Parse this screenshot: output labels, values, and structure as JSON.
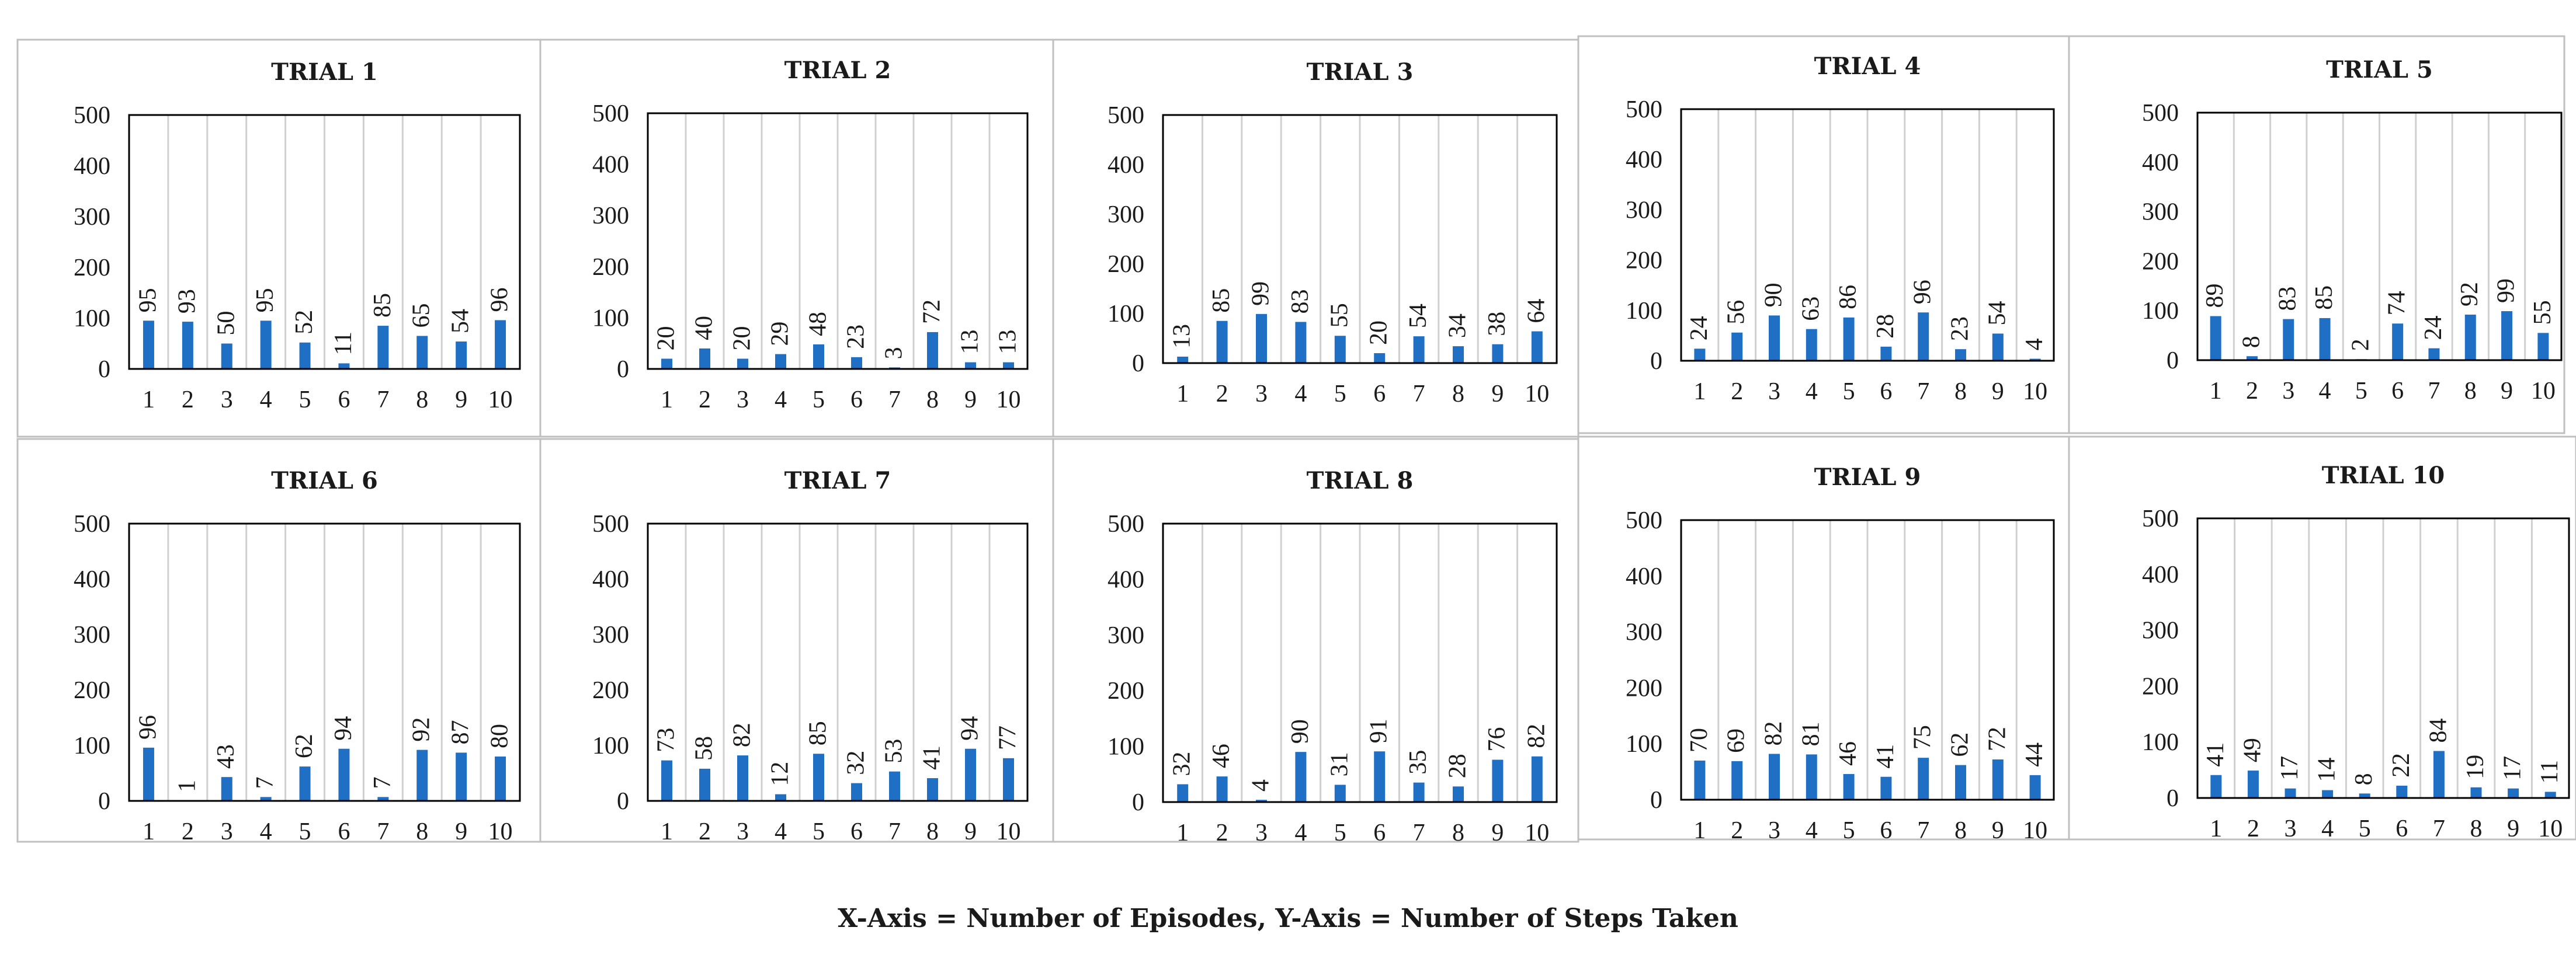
{
  "figure": {
    "caption": "X-Axis = Number of Episodes, Y-Axis = Number of Steps Taken",
    "bar_color": "#1f6fc5",
    "grid_color": "#d0d0d0",
    "frame_color": "#000000",
    "panel_border_color": "#bfbfbf"
  },
  "chart_data": [
    {
      "type": "bar",
      "title": "TRIAL 1",
      "categories": [
        "1",
        "2",
        "3",
        "4",
        "5",
        "6",
        "7",
        "8",
        "9",
        "10"
      ],
      "values": [
        95,
        93,
        50,
        95,
        52,
        11,
        85,
        65,
        54,
        96
      ],
      "ylim": [
        0,
        500
      ],
      "yticks": [
        "0",
        "100",
        "200",
        "300",
        "400",
        "500"
      ],
      "xlabel": "",
      "ylabel": "",
      "grid": true
    },
    {
      "type": "bar",
      "title": "TRIAL 2",
      "categories": [
        "1",
        "2",
        "3",
        "4",
        "5",
        "6",
        "7",
        "8",
        "9",
        "10"
      ],
      "values": [
        20,
        40,
        20,
        29,
        48,
        23,
        3,
        72,
        13,
        13
      ],
      "ylim": [
        0,
        500
      ],
      "yticks": [
        "0",
        "100",
        "200",
        "300",
        "400",
        "500"
      ],
      "xlabel": "",
      "ylabel": "",
      "grid": true
    },
    {
      "type": "bar",
      "title": "TRIAL 3",
      "categories": [
        "1",
        "2",
        "3",
        "4",
        "5",
        "6",
        "7",
        "8",
        "9",
        "10"
      ],
      "values": [
        13,
        85,
        99,
        83,
        55,
        20,
        54,
        34,
        38,
        64
      ],
      "ylim": [
        0,
        500
      ],
      "yticks": [
        "0",
        "100",
        "200",
        "300",
        "400",
        "500"
      ],
      "xlabel": "",
      "ylabel": "",
      "grid": true
    },
    {
      "type": "bar",
      "title": "TRIAL 4",
      "categories": [
        "1",
        "2",
        "3",
        "4",
        "5",
        "6",
        "7",
        "8",
        "9",
        "10"
      ],
      "values": [
        24,
        56,
        90,
        63,
        86,
        28,
        96,
        23,
        54,
        4
      ],
      "ylim": [
        0,
        500
      ],
      "yticks": [
        "0",
        "100",
        "200",
        "300",
        "400",
        "500"
      ],
      "xlabel": "",
      "ylabel": "",
      "grid": true
    },
    {
      "type": "bar",
      "title": "TRIAL 5",
      "categories": [
        "1",
        "2",
        "3",
        "4",
        "5",
        "6",
        "7",
        "8",
        "9",
        "10"
      ],
      "values": [
        89,
        8,
        83,
        85,
        2,
        74,
        24,
        92,
        99,
        55
      ],
      "ylim": [
        0,
        500
      ],
      "yticks": [
        "0",
        "100",
        "200",
        "300",
        "400",
        "500"
      ],
      "xlabel": "",
      "ylabel": "",
      "grid": true
    },
    {
      "type": "bar",
      "title": "TRIAL 6",
      "categories": [
        "1",
        "2",
        "3",
        "4",
        "5",
        "6",
        "7",
        "8",
        "9",
        "10"
      ],
      "values": [
        96,
        1,
        43,
        7,
        62,
        94,
        7,
        92,
        87,
        80
      ],
      "ylim": [
        0,
        500
      ],
      "yticks": [
        "0",
        "100",
        "200",
        "300",
        "400",
        "500"
      ],
      "xlabel": "",
      "ylabel": "",
      "grid": true
    },
    {
      "type": "bar",
      "title": "TRIAL 7",
      "categories": [
        "1",
        "2",
        "3",
        "4",
        "5",
        "6",
        "7",
        "8",
        "9",
        "10"
      ],
      "values": [
        73,
        58,
        82,
        12,
        85,
        32,
        53,
        41,
        94,
        77
      ],
      "ylim": [
        0,
        500
      ],
      "yticks": [
        "0",
        "100",
        "200",
        "300",
        "400",
        "500"
      ],
      "xlabel": "",
      "ylabel": "",
      "grid": true
    },
    {
      "type": "bar",
      "title": "TRIAL 8",
      "categories": [
        "1",
        "2",
        "3",
        "4",
        "5",
        "6",
        "7",
        "8",
        "9",
        "10"
      ],
      "values": [
        32,
        46,
        4,
        90,
        31,
        91,
        35,
        28,
        76,
        82
      ],
      "ylim": [
        0,
        500
      ],
      "yticks": [
        "0",
        "100",
        "200",
        "300",
        "400",
        "500"
      ],
      "xlabel": "",
      "ylabel": "",
      "grid": true
    },
    {
      "type": "bar",
      "title": "TRIAL 9",
      "categories": [
        "1",
        "2",
        "3",
        "4",
        "5",
        "6",
        "7",
        "8",
        "9",
        "10"
      ],
      "values": [
        70,
        69,
        82,
        81,
        46,
        41,
        75,
        62,
        72,
        44
      ],
      "ylim": [
        0,
        500
      ],
      "yticks": [
        "0",
        "100",
        "200",
        "300",
        "400",
        "500"
      ],
      "xlabel": "",
      "ylabel": "",
      "grid": true
    },
    {
      "type": "bar",
      "title": "TRIAL 10",
      "categories": [
        "1",
        "2",
        "3",
        "4",
        "5",
        "6",
        "7",
        "8",
        "9",
        "10"
      ],
      "values": [
        41,
        49,
        17,
        14,
        8,
        22,
        84,
        19,
        17,
        11
      ],
      "ylim": [
        0,
        500
      ],
      "yticks": [
        "0",
        "100",
        "200",
        "300",
        "400",
        "500"
      ],
      "xlabel": "",
      "ylabel": "",
      "grid": true
    }
  ]
}
